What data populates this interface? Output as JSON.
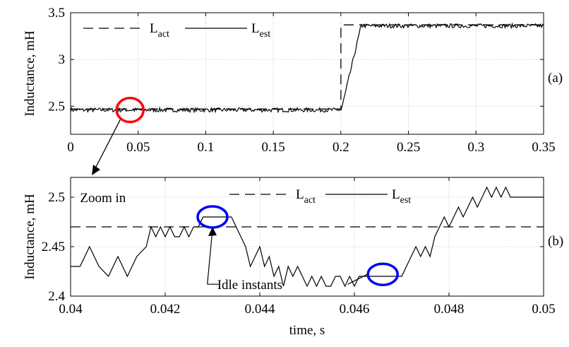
{
  "chart_data": [
    {
      "type": "line",
      "panel_label": "(a)",
      "ylabel": "Inductance, mH",
      "xlim": [
        0,
        0.35
      ],
      "ylim": [
        2.2,
        3.5
      ],
      "xticks": [
        0,
        0.05,
        0.1,
        0.15,
        0.2,
        0.25,
        0.3,
        0.35
      ],
      "xtick_labels": [
        "0",
        "0.05",
        "0.1",
        "0.15",
        "0.2",
        "0.25",
        "0.3",
        "0.35"
      ],
      "yticks": [
        2.5,
        3,
        3.5
      ],
      "ytick_labels": [
        "2.5",
        "3",
        "3.5"
      ],
      "grid": true,
      "legend": {
        "placement": "top-left",
        "entries": [
          {
            "main": "L",
            "sub": "act",
            "style": "dashed"
          },
          {
            "main": "L",
            "sub": "est",
            "style": "solid"
          }
        ]
      },
      "series": [
        {
          "style": "dashed",
          "x": [
            0,
            0.2,
            0.2,
            0.35
          ],
          "y": [
            2.47,
            2.47,
            3.37,
            3.37
          ]
        },
        {
          "style": "solid",
          "noise": 0.022,
          "x": [
            0,
            0.2,
            0.201,
            0.215,
            0.35
          ],
          "y": [
            2.46,
            2.46,
            2.5,
            3.36,
            3.36
          ]
        }
      ],
      "annotations": [
        {
          "type": "circle",
          "color": "#ff0000",
          "x": 0.044,
          "y": 2.46
        }
      ]
    },
    {
      "type": "line",
      "panel_label": "(b)",
      "ylabel": "Inductance, mH",
      "xlabel": "time, s",
      "xlim": [
        0.04,
        0.05
      ],
      "ylim": [
        2.4,
        2.52
      ],
      "xticks": [
        0.04,
        0.042,
        0.044,
        0.046,
        0.048,
        0.05
      ],
      "xtick_labels": [
        "0.04",
        "0.042",
        "0.044",
        "0.046",
        "0.048",
        "0.05"
      ],
      "yticks": [
        2.4,
        2.45,
        2.5
      ],
      "ytick_labels": [
        "2.4",
        "2.45",
        "2.5"
      ],
      "grid": true,
      "legend": {
        "placement": "top-right",
        "entries": [
          {
            "main": "L",
            "sub": "act",
            "style": "dashed"
          },
          {
            "main": "L",
            "sub": "est",
            "style": "solid"
          }
        ]
      },
      "series": [
        {
          "style": "dashed",
          "x": [
            0.04,
            0.05
          ],
          "y": [
            2.47,
            2.47
          ]
        },
        {
          "style": "solid",
          "x": [
            0.04,
            0.0402,
            0.0404,
            0.0406,
            0.0408,
            0.041,
            0.0412,
            0.0414,
            0.0416,
            0.0417,
            0.0418,
            0.0419,
            0.042,
            0.0421,
            0.0422,
            0.0423,
            0.0424,
            0.0425,
            0.0426,
            0.0427,
            0.0428,
            0.0429,
            0.0432,
            0.0434,
            0.0435,
            0.0436,
            0.0437,
            0.0438,
            0.0439,
            0.044,
            0.0441,
            0.0442,
            0.0443,
            0.0444,
            0.0445,
            0.0446,
            0.0447,
            0.0448,
            0.0449,
            0.045,
            0.0451,
            0.0452,
            0.0453,
            0.0454,
            0.0455,
            0.0456,
            0.0457,
            0.0458,
            0.0459,
            0.046,
            0.0461,
            0.0462,
            0.047,
            0.0471,
            0.0472,
            0.0473,
            0.0474,
            0.0475,
            0.0476,
            0.0477,
            0.0478,
            0.0479,
            0.048,
            0.0481,
            0.0482,
            0.0483,
            0.0484,
            0.0485,
            0.0486,
            0.0487,
            0.0488,
            0.0489,
            0.049,
            0.0491,
            0.0492,
            0.0493,
            0.0494,
            0.0495,
            0.05
          ],
          "y": [
            2.43,
            2.43,
            2.45,
            2.43,
            2.42,
            2.44,
            2.42,
            2.44,
            2.45,
            2.47,
            2.46,
            2.47,
            2.46,
            2.47,
            2.46,
            2.46,
            2.47,
            2.46,
            2.47,
            2.47,
            2.48,
            2.48,
            2.48,
            2.48,
            2.47,
            2.46,
            2.45,
            2.43,
            2.44,
            2.45,
            2.43,
            2.44,
            2.42,
            2.43,
            2.41,
            2.43,
            2.42,
            2.43,
            2.42,
            2.41,
            2.42,
            2.41,
            2.42,
            2.41,
            2.41,
            2.42,
            2.42,
            2.41,
            2.42,
            2.41,
            2.42,
            2.42,
            2.42,
            2.43,
            2.44,
            2.45,
            2.44,
            2.45,
            2.44,
            2.46,
            2.47,
            2.48,
            2.47,
            2.48,
            2.49,
            2.48,
            2.49,
            2.5,
            2.49,
            2.5,
            2.51,
            2.5,
            2.51,
            2.5,
            2.51,
            2.5,
            2.5,
            2.5,
            2.5
          ]
        }
      ],
      "annotations": [
        {
          "type": "text",
          "text": "Zoom in",
          "x": 0.0402,
          "y": 2.5
        },
        {
          "type": "text",
          "text": "Idle instants",
          "x": 0.0431,
          "y": 2.412
        },
        {
          "type": "circle",
          "color": "#0000ff",
          "x": 0.043,
          "y": 2.48
        },
        {
          "type": "circle",
          "color": "#0000ff",
          "x": 0.0466,
          "y": 2.422
        }
      ]
    }
  ]
}
